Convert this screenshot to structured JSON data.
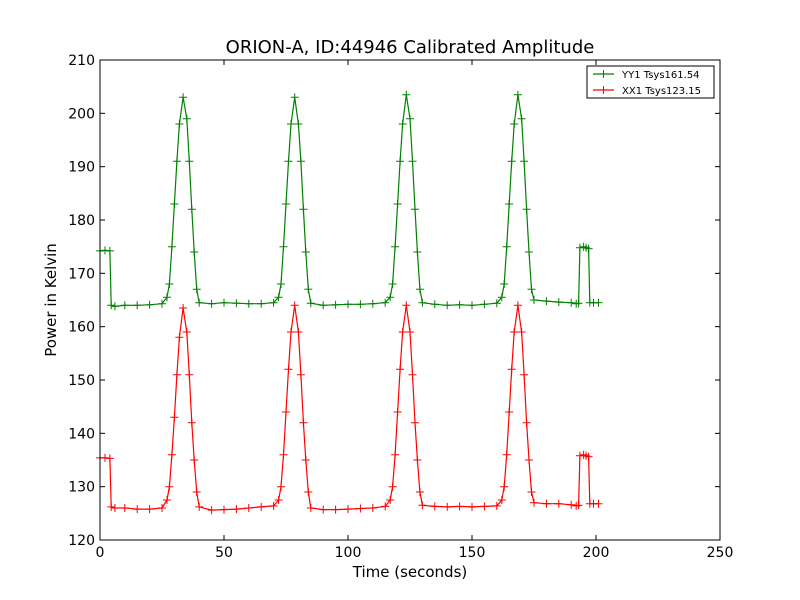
{
  "chart_data": {
    "type": "line",
    "title": "ORION-A, ID:44946 Calibrated Amplitude",
    "xlabel": "Time (seconds)",
    "ylabel": "Power in Kelvin",
    "xlim": [
      0,
      250
    ],
    "ylim": [
      120,
      210
    ],
    "xticks": [
      0,
      50,
      100,
      150,
      200,
      250
    ],
    "yticks": [
      120,
      130,
      140,
      150,
      160,
      170,
      180,
      190,
      200,
      210
    ],
    "grid": false,
    "legend_position": "top-right",
    "series": [
      {
        "name": "YY1 Tsys161.54",
        "color": "#008000",
        "marker": "plus",
        "base_level": 164.3,
        "cal_level": 174.2,
        "peaks": [
          {
            "x": 33.5,
            "y": 203.0
          },
          {
            "x": 78.5,
            "y": 203.0
          },
          {
            "x": 123.5,
            "y": 203.5
          },
          {
            "x": 168.5,
            "y": 203.5
          }
        ],
        "points": [
          [
            0,
            174.2
          ],
          [
            2,
            174.3
          ],
          [
            4,
            174.2
          ],
          [
            4.5,
            164.0
          ],
          [
            6,
            163.8
          ],
          [
            10,
            164.0
          ],
          [
            15,
            164.0
          ],
          [
            20,
            164.1
          ],
          [
            25,
            164.3
          ],
          [
            27,
            165.5
          ],
          [
            28,
            168
          ],
          [
            29,
            175
          ],
          [
            30,
            183
          ],
          [
            31,
            191
          ],
          [
            32,
            198
          ],
          [
            33.5,
            203.0
          ],
          [
            35,
            199
          ],
          [
            36,
            191
          ],
          [
            37,
            182
          ],
          [
            38,
            174
          ],
          [
            39,
            167
          ],
          [
            40,
            164.5
          ],
          [
            45,
            164.3
          ],
          [
            50,
            164.5
          ],
          [
            55,
            164.4
          ],
          [
            60,
            164.3
          ],
          [
            65,
            164.3
          ],
          [
            70,
            164.5
          ],
          [
            72,
            165.5
          ],
          [
            73,
            168
          ],
          [
            74,
            175
          ],
          [
            75,
            183
          ],
          [
            76,
            191
          ],
          [
            77,
            198
          ],
          [
            78.5,
            203.0
          ],
          [
            80,
            198
          ],
          [
            81,
            191
          ],
          [
            82,
            182
          ],
          [
            83,
            174
          ],
          [
            84,
            167
          ],
          [
            85,
            164.4
          ],
          [
            90,
            164.0
          ],
          [
            95,
            164.1
          ],
          [
            100,
            164.2
          ],
          [
            105,
            164.2
          ],
          [
            110,
            164.3
          ],
          [
            115,
            164.5
          ],
          [
            117,
            165.5
          ],
          [
            118,
            168
          ],
          [
            119,
            175
          ],
          [
            120,
            183
          ],
          [
            121,
            191
          ],
          [
            122,
            198
          ],
          [
            123.5,
            203.5
          ],
          [
            125,
            199
          ],
          [
            126,
            191
          ],
          [
            127,
            182
          ],
          [
            128,
            174
          ],
          [
            129,
            167
          ],
          [
            130,
            164.5
          ],
          [
            135,
            164.2
          ],
          [
            140,
            164.0
          ],
          [
            145,
            164.1
          ],
          [
            150,
            164.0
          ],
          [
            155,
            164.2
          ],
          [
            160,
            164.4
          ],
          [
            162,
            165.5
          ],
          [
            163,
            168
          ],
          [
            164,
            175
          ],
          [
            165,
            183
          ],
          [
            166,
            191
          ],
          [
            167,
            198
          ],
          [
            168.5,
            203.5
          ],
          [
            170,
            199
          ],
          [
            171,
            191
          ],
          [
            172,
            182
          ],
          [
            173,
            174
          ],
          [
            174,
            167
          ],
          [
            175,
            165.0
          ],
          [
            180,
            164.8
          ],
          [
            185,
            164.6
          ],
          [
            190,
            164.5
          ],
          [
            192,
            164.3
          ],
          [
            193,
            164.4
          ],
          [
            193.5,
            174.8
          ],
          [
            195,
            175.0
          ],
          [
            196,
            174.8
          ],
          [
            197,
            174.6
          ],
          [
            197.5,
            164.5
          ],
          [
            199,
            164.5
          ],
          [
            201,
            164.5
          ]
        ]
      },
      {
        "name": "XX1 Tsys123.15",
        "color": "#ff0000",
        "marker": "plus",
        "base_level": 126.0,
        "cal_level": 135.4,
        "peaks": [
          {
            "x": 33.5,
            "y": 163.5
          },
          {
            "x": 78.5,
            "y": 164.0
          },
          {
            "x": 123.5,
            "y": 164.0
          },
          {
            "x": 168.5,
            "y": 164.0
          }
        ],
        "points": [
          [
            0,
            135.4
          ],
          [
            2,
            135.4
          ],
          [
            4,
            135.3
          ],
          [
            4.5,
            126.2
          ],
          [
            6,
            126.0
          ],
          [
            10,
            126.0
          ],
          [
            15,
            125.8
          ],
          [
            20,
            125.8
          ],
          [
            25,
            126.0
          ],
          [
            27,
            127.5
          ],
          [
            28,
            130
          ],
          [
            29,
            136
          ],
          [
            30,
            143
          ],
          [
            31,
            151
          ],
          [
            32,
            158
          ],
          [
            33.5,
            163.5
          ],
          [
            35,
            159
          ],
          [
            36,
            151
          ],
          [
            37,
            142
          ],
          [
            38,
            135
          ],
          [
            39,
            129
          ],
          [
            40,
            126.2
          ],
          [
            45,
            125.6
          ],
          [
            50,
            125.7
          ],
          [
            55,
            125.8
          ],
          [
            60,
            126.0
          ],
          [
            65,
            126.2
          ],
          [
            70,
            126.4
          ],
          [
            72,
            127.5
          ],
          [
            73,
            130
          ],
          [
            74,
            136
          ],
          [
            75,
            144
          ],
          [
            76,
            152
          ],
          [
            77,
            159
          ],
          [
            78.5,
            164.0
          ],
          [
            80,
            159
          ],
          [
            81,
            151
          ],
          [
            82,
            142
          ],
          [
            83,
            135
          ],
          [
            84,
            129
          ],
          [
            85,
            126.0
          ],
          [
            90,
            125.7
          ],
          [
            95,
            125.7
          ],
          [
            100,
            125.8
          ],
          [
            105,
            125.9
          ],
          [
            110,
            126.0
          ],
          [
            115,
            126.3
          ],
          [
            117,
            127.5
          ],
          [
            118,
            130
          ],
          [
            119,
            136
          ],
          [
            120,
            144
          ],
          [
            121,
            152
          ],
          [
            122,
            159
          ],
          [
            123.5,
            164.0
          ],
          [
            125,
            159
          ],
          [
            126,
            151
          ],
          [
            127,
            142
          ],
          [
            128,
            135
          ],
          [
            129,
            129
          ],
          [
            130,
            126.5
          ],
          [
            135,
            126.3
          ],
          [
            140,
            126.2
          ],
          [
            145,
            126.3
          ],
          [
            150,
            126.2
          ],
          [
            155,
            126.3
          ],
          [
            160,
            126.4
          ],
          [
            162,
            127.5
          ],
          [
            163,
            130
          ],
          [
            164,
            136
          ],
          [
            165,
            144
          ],
          [
            166,
            152
          ],
          [
            167,
            159
          ],
          [
            168.5,
            164.0
          ],
          [
            170,
            159
          ],
          [
            171,
            151
          ],
          [
            172,
            142
          ],
          [
            173,
            135
          ],
          [
            174,
            129
          ],
          [
            175,
            127.0
          ],
          [
            180,
            126.8
          ],
          [
            185,
            126.8
          ],
          [
            190,
            126.6
          ],
          [
            192,
            126.4
          ],
          [
            193,
            126.5
          ],
          [
            193.5,
            135.8
          ],
          [
            195,
            136.0
          ],
          [
            196,
            135.8
          ],
          [
            197,
            135.6
          ],
          [
            197.5,
            126.8
          ],
          [
            199,
            126.8
          ],
          [
            201,
            126.8
          ]
        ]
      }
    ]
  }
}
